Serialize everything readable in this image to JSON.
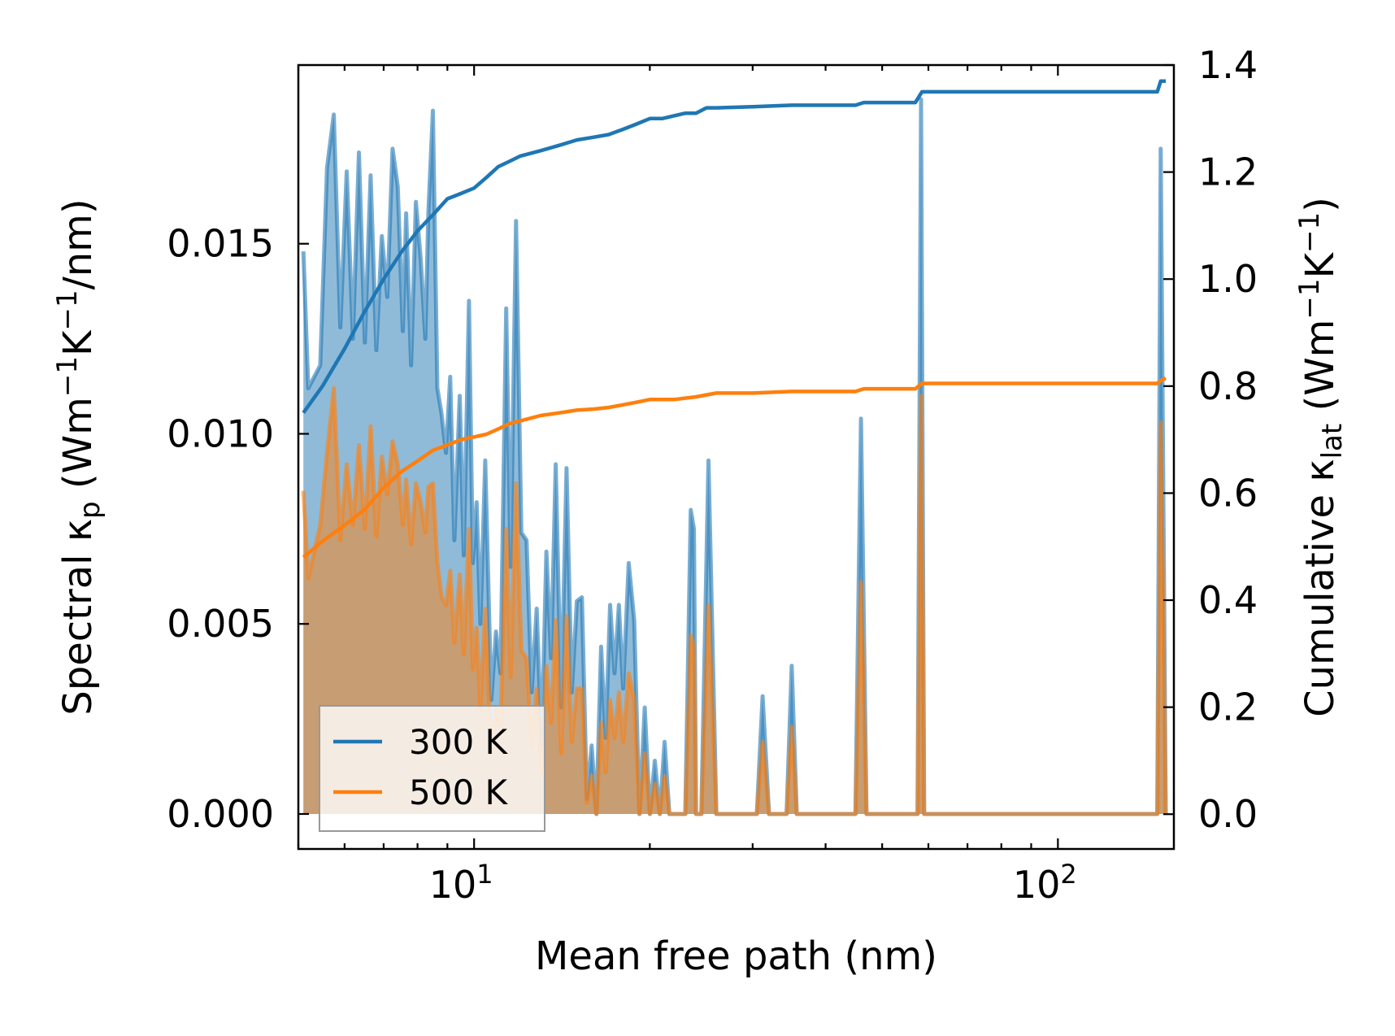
{
  "chart_data": {
    "type": "line",
    "title": "",
    "xlabel": "Mean free path (nm)",
    "ylabel_left": "Spectral κp (Wm−1K−1/nm)",
    "ylabel_left_parts": [
      "Spectral κ",
      "p",
      " (Wm",
      "−1",
      "K",
      "−1",
      "/nm)"
    ],
    "ylabel_right": "Cumulative κlat (Wm−1K−1)",
    "ylabel_right_parts": [
      "Cumulative κ",
      "lat",
      " (Wm",
      "−1",
      "K",
      "−1",
      ")"
    ],
    "xscale": "log",
    "xlim": [
      5.0,
      158
    ],
    "ylim_left": [
      -0.00092,
      0.0197
    ],
    "ylim_right": [
      -0.065,
      1.4
    ],
    "x_ticks": [
      {
        "value": 10,
        "base": "10",
        "exp": "1"
      },
      {
        "value": 100,
        "base": "10",
        "exp": "2"
      }
    ],
    "y_left_ticks": [
      "0.000",
      "0.005",
      "0.010",
      "0.015"
    ],
    "y_right_ticks": [
      "0.0",
      "0.2",
      "0.4",
      "0.6",
      "0.8",
      "1.0",
      "1.2",
      "1.4"
    ],
    "legend_position": "lower-left",
    "series": [
      {
        "name": "300 K",
        "color": "#1f77b4",
        "spectral": [
          [
            5.1,
            0.0148
          ],
          [
            5.2,
            0.0112
          ],
          [
            5.45,
            0.0118
          ],
          [
            5.6,
            0.017
          ],
          [
            5.75,
            0.0184
          ],
          [
            5.9,
            0.0128
          ],
          [
            6.05,
            0.0169
          ],
          [
            6.2,
            0.0125
          ],
          [
            6.35,
            0.0174
          ],
          [
            6.5,
            0.0124
          ],
          [
            6.65,
            0.0168
          ],
          [
            6.8,
            0.0122
          ],
          [
            6.95,
            0.0152
          ],
          [
            7.1,
            0.0136
          ],
          [
            7.25,
            0.0175
          ],
          [
            7.4,
            0.0165
          ],
          [
            7.55,
            0.0127
          ],
          [
            7.65,
            0.0158
          ],
          [
            7.8,
            0.0118
          ],
          [
            7.95,
            0.0161
          ],
          [
            8.1,
            0.0146
          ],
          [
            8.25,
            0.0125
          ],
          [
            8.35,
            0.0158
          ],
          [
            8.5,
            0.0185
          ],
          [
            8.65,
            0.0112
          ],
          [
            8.8,
            0.0105
          ],
          [
            8.95,
            0.0095
          ],
          [
            9.1,
            0.0115
          ],
          [
            9.25,
            0.0072
          ],
          [
            9.45,
            0.011
          ],
          [
            9.6,
            0.0068
          ],
          [
            9.8,
            0.0135
          ],
          [
            9.95,
            0.0066
          ],
          [
            10.1,
            0.0082
          ],
          [
            10.25,
            0.005
          ],
          [
            10.45,
            0.0093
          ],
          [
            10.7,
            0.003
          ],
          [
            10.9,
            0.0048
          ],
          [
            11.1,
            0.0037
          ],
          [
            11.35,
            0.0133
          ],
          [
            11.55,
            0.0065
          ],
          [
            11.8,
            0.0156
          ],
          [
            12.05,
            0.0074
          ],
          [
            12.3,
            0.0072
          ],
          [
            12.55,
            0.0032
          ],
          [
            12.8,
            0.0054
          ],
          [
            13.05,
            0.0018
          ],
          [
            13.3,
            0.0069
          ],
          [
            13.55,
            0.0041
          ],
          [
            13.8,
            0.0092
          ],
          [
            14.1,
            0.0028
          ],
          [
            14.4,
            0.0091
          ],
          [
            14.7,
            0.0032
          ],
          [
            15.0,
            0.0056
          ],
          [
            15.3,
            0.0057
          ],
          [
            15.6,
            0.0004
          ],
          [
            15.9,
            0.0018
          ],
          [
            16.2,
            0.0
          ],
          [
            16.5,
            0.0044
          ],
          [
            16.8,
            0.002
          ],
          [
            17.1,
            0.0055
          ],
          [
            17.4,
            0.0037
          ],
          [
            17.7,
            0.0055
          ],
          [
            18.0,
            0.0033
          ],
          [
            18.4,
            0.0066
          ],
          [
            18.8,
            0.0051
          ],
          [
            19.2,
            0.0
          ],
          [
            19.6,
            0.0028
          ],
          [
            20.0,
            0.0
          ],
          [
            20.4,
            0.0014
          ],
          [
            20.8,
            0.0
          ],
          [
            21.2,
            0.0019
          ],
          [
            21.6,
            0.0
          ],
          [
            22.0,
            0.0
          ],
          [
            22.5,
            0.0
          ],
          [
            23.0,
            0.0
          ],
          [
            23.5,
            0.008
          ],
          [
            23.8,
            0.0075
          ],
          [
            24.0,
            0.0
          ],
          [
            24.5,
            0.0
          ],
          [
            25.2,
            0.0093
          ],
          [
            26.0,
            0.0
          ],
          [
            30.5,
            0.0
          ],
          [
            31.2,
            0.0031
          ],
          [
            32.0,
            0.0
          ],
          [
            34.3,
            0.0
          ],
          [
            35.0,
            0.0039
          ],
          [
            35.7,
            0.0
          ],
          [
            45.0,
            0.0
          ],
          [
            46.0,
            0.0104
          ],
          [
            47.0,
            0.0
          ],
          [
            57.5,
            0.0
          ],
          [
            58.3,
            0.0188
          ],
          [
            59.0,
            0.0
          ],
          [
            148.0,
            0.0
          ],
          [
            150.0,
            0.0175
          ],
          [
            153.0,
            0.0
          ]
        ],
        "cumulative": [
          [
            5.1,
            0.75
          ],
          [
            5.5,
            0.8
          ],
          [
            6.0,
            0.87
          ],
          [
            6.5,
            0.94
          ],
          [
            7.0,
            1.0
          ],
          [
            7.5,
            1.05
          ],
          [
            8.0,
            1.09
          ],
          [
            8.5,
            1.12
          ],
          [
            9.0,
            1.15
          ],
          [
            9.5,
            1.16
          ],
          [
            10.0,
            1.17
          ],
          [
            10.5,
            1.19
          ],
          [
            11.0,
            1.21
          ],
          [
            11.5,
            1.22
          ],
          [
            12.0,
            1.23
          ],
          [
            13.0,
            1.24
          ],
          [
            14.0,
            1.25
          ],
          [
            15.0,
            1.26
          ],
          [
            16.0,
            1.265
          ],
          [
            17.0,
            1.27
          ],
          [
            18.0,
            1.28
          ],
          [
            19.0,
            1.29
          ],
          [
            20.0,
            1.3
          ],
          [
            21.0,
            1.3
          ],
          [
            23.0,
            1.31
          ],
          [
            24.0,
            1.31
          ],
          [
            25.0,
            1.32
          ],
          [
            26.0,
            1.32
          ],
          [
            30.0,
            1.322
          ],
          [
            35.0,
            1.325
          ],
          [
            40.0,
            1.325
          ],
          [
            45.0,
            1.325
          ],
          [
            46.5,
            1.33
          ],
          [
            57.0,
            1.33
          ],
          [
            58.5,
            1.35
          ],
          [
            100.0,
            1.35
          ],
          [
            148.0,
            1.35
          ],
          [
            150.0,
            1.37
          ],
          [
            153.0,
            1.37
          ]
        ]
      },
      {
        "name": "500 K",
        "color": "#ff7f0e",
        "spectral": [
          [
            5.1,
            0.0085
          ],
          [
            5.2,
            0.0062
          ],
          [
            5.45,
            0.0076
          ],
          [
            5.6,
            0.0095
          ],
          [
            5.75,
            0.0112
          ],
          [
            5.9,
            0.0072
          ],
          [
            6.05,
            0.0092
          ],
          [
            6.2,
            0.0076
          ],
          [
            6.35,
            0.0097
          ],
          [
            6.5,
            0.0075
          ],
          [
            6.65,
            0.0102
          ],
          [
            6.8,
            0.0073
          ],
          [
            6.95,
            0.0094
          ],
          [
            7.1,
            0.0084
          ],
          [
            7.25,
            0.0098
          ],
          [
            7.4,
            0.0092
          ],
          [
            7.55,
            0.0076
          ],
          [
            7.65,
            0.0088
          ],
          [
            7.8,
            0.0071
          ],
          [
            7.95,
            0.0087
          ],
          [
            8.1,
            0.0082
          ],
          [
            8.25,
            0.0074
          ],
          [
            8.35,
            0.0086
          ],
          [
            8.5,
            0.0087
          ],
          [
            8.65,
            0.0066
          ],
          [
            8.8,
            0.0057
          ],
          [
            8.95,
            0.0055
          ],
          [
            9.1,
            0.0064
          ],
          [
            9.25,
            0.0045
          ],
          [
            9.45,
            0.0063
          ],
          [
            9.6,
            0.0042
          ],
          [
            9.8,
            0.0075
          ],
          [
            9.95,
            0.0038
          ],
          [
            10.1,
            0.0049
          ],
          [
            10.25,
            0.0028
          ],
          [
            10.45,
            0.0054
          ],
          [
            10.7,
            0.0016
          ],
          [
            10.9,
            0.0028
          ],
          [
            11.1,
            0.0023
          ],
          [
            11.35,
            0.0075
          ],
          [
            11.55,
            0.0036
          ],
          [
            11.8,
            0.0087
          ],
          [
            12.05,
            0.0043
          ],
          [
            12.3,
            0.0041
          ],
          [
            12.55,
            0.0018
          ],
          [
            12.8,
            0.0033
          ],
          [
            13.05,
            0.0011
          ],
          [
            13.3,
            0.0039
          ],
          [
            13.55,
            0.0024
          ],
          [
            13.8,
            0.0051
          ],
          [
            14.1,
            0.0016
          ],
          [
            14.4,
            0.0052
          ],
          [
            14.7,
            0.0019
          ],
          [
            15.0,
            0.0033
          ],
          [
            15.3,
            0.0033
          ],
          [
            15.6,
            0.0003
          ],
          [
            15.9,
            0.001
          ],
          [
            16.2,
            0.0
          ],
          [
            16.5,
            0.0024
          ],
          [
            16.8,
            0.0011
          ],
          [
            17.1,
            0.003
          ],
          [
            17.4,
            0.002
          ],
          [
            17.7,
            0.0032
          ],
          [
            18.0,
            0.0019
          ],
          [
            18.4,
            0.0037
          ],
          [
            18.8,
            0.003
          ],
          [
            19.2,
            0.0
          ],
          [
            19.6,
            0.0016
          ],
          [
            20.0,
            0.0
          ],
          [
            20.4,
            0.0008
          ],
          [
            20.8,
            0.0
          ],
          [
            21.2,
            0.001
          ],
          [
            21.6,
            0.0
          ],
          [
            22.0,
            0.0
          ],
          [
            22.5,
            0.0
          ],
          [
            23.0,
            0.0
          ],
          [
            23.5,
            0.0047
          ],
          [
            23.8,
            0.0044
          ],
          [
            24.0,
            0.0
          ],
          [
            24.5,
            0.0
          ],
          [
            25.2,
            0.0055
          ],
          [
            26.0,
            0.0
          ],
          [
            30.5,
            0.0
          ],
          [
            31.2,
            0.0019
          ],
          [
            32.0,
            0.0
          ],
          [
            34.3,
            0.0
          ],
          [
            35.0,
            0.0023
          ],
          [
            35.7,
            0.0
          ],
          [
            45.0,
            0.0
          ],
          [
            46.0,
            0.0061
          ],
          [
            47.0,
            0.0
          ],
          [
            57.5,
            0.0
          ],
          [
            58.3,
            0.011
          ],
          [
            59.0,
            0.0
          ],
          [
            148.0,
            0.0
          ],
          [
            150.0,
            0.0103
          ],
          [
            153.0,
            0.0
          ]
        ],
        "cumulative": [
          [
            5.1,
            0.48
          ],
          [
            5.5,
            0.51
          ],
          [
            6.0,
            0.54
          ],
          [
            6.5,
            0.57
          ],
          [
            7.0,
            0.61
          ],
          [
            7.5,
            0.64
          ],
          [
            8.0,
            0.66
          ],
          [
            8.5,
            0.68
          ],
          [
            9.0,
            0.69
          ],
          [
            9.5,
            0.7
          ],
          [
            10.0,
            0.705
          ],
          [
            10.5,
            0.71
          ],
          [
            11.0,
            0.72
          ],
          [
            11.5,
            0.73
          ],
          [
            12.0,
            0.735
          ],
          [
            13.0,
            0.745
          ],
          [
            14.0,
            0.75
          ],
          [
            15.0,
            0.755
          ],
          [
            16.0,
            0.757
          ],
          [
            17.0,
            0.76
          ],
          [
            18.0,
            0.765
          ],
          [
            19.0,
            0.77
          ],
          [
            20.0,
            0.775
          ],
          [
            22.0,
            0.775
          ],
          [
            24.0,
            0.78
          ],
          [
            26.0,
            0.787
          ],
          [
            30.0,
            0.787
          ],
          [
            35.0,
            0.79
          ],
          [
            40.0,
            0.79
          ],
          [
            45.0,
            0.79
          ],
          [
            46.5,
            0.795
          ],
          [
            57.0,
            0.795
          ],
          [
            58.5,
            0.805
          ],
          [
            100.0,
            0.805
          ],
          [
            148.0,
            0.805
          ],
          [
            150.0,
            0.81
          ],
          [
            153.0,
            0.815
          ]
        ]
      }
    ]
  }
}
